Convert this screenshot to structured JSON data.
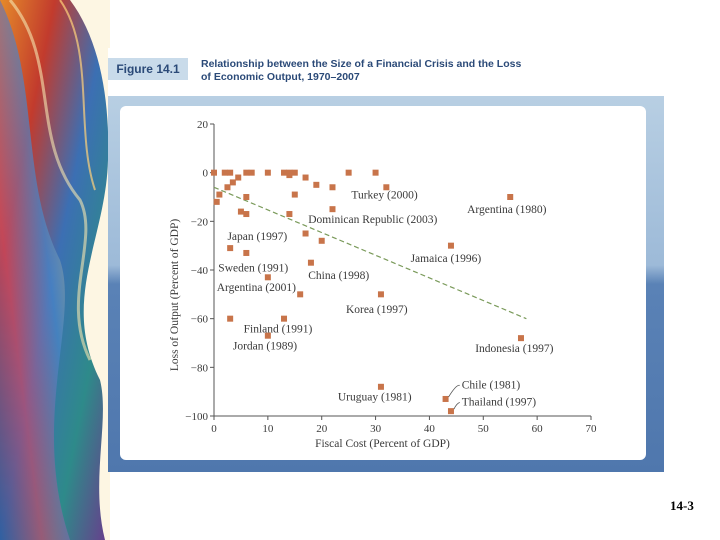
{
  "figure": {
    "tag": "Figure 14.1",
    "title_line1": "Relationship between the Size of a Financial Crisis and the Loss",
    "title_line2": "of Economic Output, 1970–2007"
  },
  "slide": {
    "number": "14-3"
  },
  "colors": {
    "point": "#c8744a",
    "trendline": "#7a9a5a",
    "header_blue": "#2b4a78",
    "panel_top": "#b8cfe3",
    "panel_bottom": "#4f77ad"
  },
  "chart_data": {
    "type": "scatter",
    "xlabel": "Fiscal Cost (Percent of GDP)",
    "ylabel": "Loss of Output (Percent of GDP)",
    "xlim": [
      0,
      70
    ],
    "ylim": [
      -100,
      20
    ],
    "xticks": [
      0,
      10,
      20,
      30,
      40,
      50,
      60,
      70
    ],
    "yticks": [
      20,
      0,
      -20,
      -40,
      -60,
      -80,
      -100
    ],
    "trendline": {
      "x": [
        0,
        58
      ],
      "y": [
        -6,
        -60
      ]
    },
    "points": [
      [
        0,
        0
      ],
      [
        0.5,
        -12
      ],
      [
        1,
        -9
      ],
      [
        2,
        0
      ],
      [
        2.5,
        -6
      ],
      [
        3,
        0
      ],
      [
        3.5,
        -4
      ],
      [
        4.5,
        -2
      ],
      [
        5,
        -16
      ],
      [
        6,
        0
      ],
      [
        6,
        -10
      ],
      [
        6,
        -17
      ],
      [
        7,
        0
      ],
      [
        10,
        0
      ],
      [
        13,
        0
      ],
      [
        14,
        -1
      ],
      [
        14,
        0
      ],
      [
        15,
        0
      ],
      [
        15,
        -9
      ],
      [
        17,
        -2
      ],
      [
        19,
        -5
      ],
      [
        22,
        -6
      ],
      [
        25,
        0
      ],
      [
        30,
        0
      ],
      [
        14,
        -17
      ],
      [
        17,
        -25
      ],
      [
        20,
        -28
      ],
      [
        3,
        -31
      ],
      [
        6,
        -33
      ],
      [
        18,
        -37
      ],
      [
        10,
        -43
      ],
      [
        16,
        -50
      ],
      [
        31,
        -50
      ],
      [
        3,
        -60
      ],
      [
        13,
        -60
      ],
      [
        10,
        -67
      ],
      [
        31,
        -88
      ],
      [
        43,
        -93
      ],
      [
        44,
        -98
      ],
      [
        22,
        -15
      ],
      [
        32,
        -6
      ],
      [
        55,
        -10
      ],
      [
        44,
        -30
      ],
      [
        57,
        -68
      ]
    ],
    "annotations": [
      {
        "text": "Turkey (2000)",
        "x": 25.5,
        "y": -9
      },
      {
        "text": "Argentina (1980)",
        "x": 47,
        "y": -15
      },
      {
        "text": "Dominican Republic (2003)",
        "x": 17.5,
        "y": -19
      },
      {
        "text": "Japan (1997)",
        "x": 2.5,
        "y": -26
      },
      {
        "text": "Jamaica (1996)",
        "x": 36.5,
        "y": -35
      },
      {
        "text": "Sweden (1991)",
        "x": 0.8,
        "y": -39
      },
      {
        "text": "China (1998)",
        "x": 17.5,
        "y": -42
      },
      {
        "text": "Argentina (2001)",
        "x": 0.5,
        "y": -47
      },
      {
        "text": "Korea (1997)",
        "x": 24.5,
        "y": -56
      },
      {
        "text": "Finland (1991)",
        "x": 5.5,
        "y": -64
      },
      {
        "text": "Jordan (1989)",
        "x": 3.5,
        "y": -71
      },
      {
        "text": "Indonesia (1997)",
        "x": 48.5,
        "y": -72
      },
      {
        "text": "Uruguay (1981)",
        "x": 23,
        "y": -92
      },
      {
        "text": "Chile (1981)",
        "x": 46,
        "y": -87
      },
      {
        "text": "Thailand (1997)",
        "x": 46,
        "y": -94
      }
    ]
  }
}
